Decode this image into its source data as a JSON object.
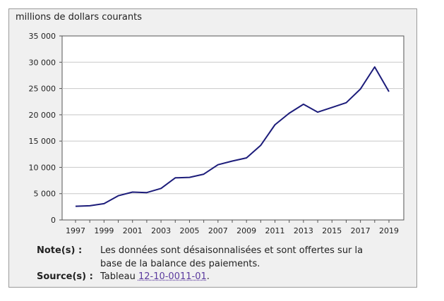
{
  "chart_data": {
    "type": "line",
    "title": "",
    "ylabel": "millions de dollars courants",
    "xlabel": "",
    "ylim": [
      0,
      35000
    ],
    "yticks": [
      "0",
      "5 000",
      "10 000",
      "15 000",
      "20 000",
      "25 000",
      "30 000",
      "35 000"
    ],
    "ytick_values": [
      0,
      5000,
      10000,
      15000,
      20000,
      25000,
      30000,
      35000
    ],
    "xticks": [
      "1997",
      "1999",
      "2001",
      "2003",
      "2005",
      "2007",
      "2009",
      "2011",
      "2013",
      "2015",
      "2017",
      "2019"
    ],
    "xtick_values": [
      1997,
      1999,
      2001,
      2003,
      2005,
      2007,
      2009,
      2011,
      2013,
      2015,
      2017,
      2019
    ],
    "grid": "horizontal",
    "line_color": "#1c1c7a",
    "x": [
      1997,
      1998,
      1999,
      2000,
      2001,
      2002,
      2003,
      2004,
      2005,
      2006,
      2007,
      2008,
      2009,
      2010,
      2011,
      2012,
      2013,
      2014,
      2015,
      2016,
      2017,
      2018,
      2019
    ],
    "values": [
      2600,
      2700,
      3100,
      4600,
      5300,
      5200,
      6000,
      8000,
      8100,
      8700,
      10500,
      11200,
      11800,
      14200,
      18100,
      20300,
      22000,
      20500,
      21400,
      22300,
      24900,
      29100,
      24400
    ]
  },
  "notes": {
    "note_label": "Note(s) :",
    "note_line1": "Les données sont désaisonnalisées et sont offertes sur la",
    "note_line2": "base de la balance des paiements.",
    "source_label": "Source(s) :",
    "source_prefix": "Tableau ",
    "source_link": "12-10-0011-01",
    "source_suffix": "."
  }
}
